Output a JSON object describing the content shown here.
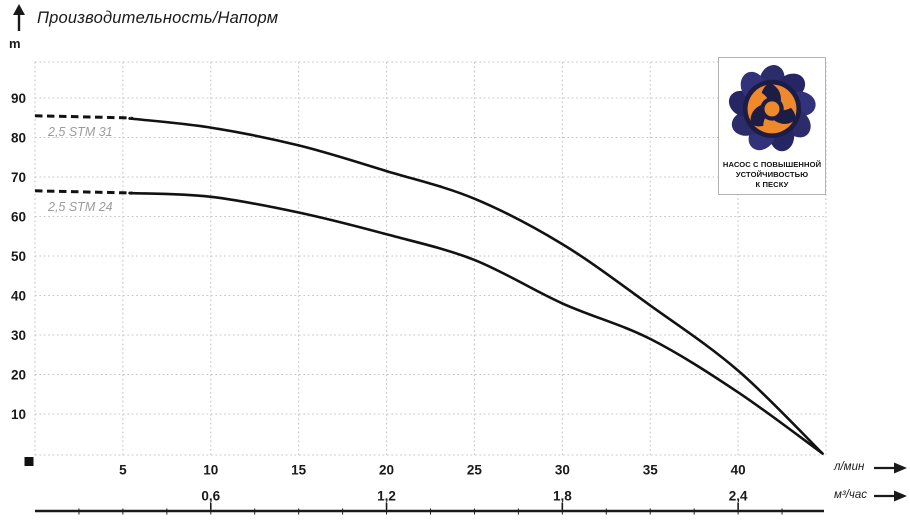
{
  "title_block": {
    "title": "Производительность/Напорм"
  },
  "logo": {
    "line1": "НАСОС С ПОВЫШЕННОЙ",
    "line2": "УСТОЙЧИВОСТЬЮ",
    "line3": "К ПЕСКУ"
  },
  "colors": {
    "curve": "#121212",
    "grid": "#c4c4c4",
    "label_gray": "#9b9b9b",
    "text": "#1a1a1a",
    "logo_navy": "#2c2c6b",
    "logo_dark": "#1c1c44",
    "logo_orange": "#ef8a2c"
  },
  "chart_data": {
    "type": "line",
    "title": "Производительность/Напорм",
    "grid": true,
    "legend_position": "inline-left",
    "y_axis": {
      "unit": "m",
      "ticks": [
        10,
        20,
        30,
        40,
        50,
        60,
        70,
        80,
        90
      ],
      "range": [
        0,
        99
      ]
    },
    "x_axis_primary": {
      "unit": "л/мин",
      "ticks": [
        5,
        10,
        15,
        20,
        25,
        30,
        35,
        40
      ],
      "range": [
        0,
        45
      ]
    },
    "x_axis_secondary": {
      "unit": "м³/час",
      "ticks": [
        {
          "label": "0,6",
          "at_lmin": 10
        },
        {
          "label": "1,2",
          "at_lmin": 20
        },
        {
          "label": "1,8",
          "at_lmin": 30
        },
        {
          "label": "2,4",
          "at_lmin": 40
        }
      ]
    },
    "series": [
      {
        "name": "2,5 STM 31",
        "dashed_until_lmin": 5.4,
        "points_lmin_m": [
          [
            0,
            85.5
          ],
          [
            5,
            85
          ],
          [
            10,
            82.5
          ],
          [
            15,
            78
          ],
          [
            20,
            71.5
          ],
          [
            25,
            64.5
          ],
          [
            30,
            53
          ],
          [
            35,
            37.5
          ],
          [
            40,
            21
          ],
          [
            44.8,
            0
          ]
        ]
      },
      {
        "name": "2,5 STM 24",
        "dashed_until_lmin": 5.4,
        "points_lmin_m": [
          [
            0,
            66.5
          ],
          [
            5,
            66
          ],
          [
            10,
            65
          ],
          [
            15,
            61
          ],
          [
            20,
            55.5
          ],
          [
            25,
            49
          ],
          [
            30,
            38
          ],
          [
            35,
            29
          ],
          [
            40,
            15.5
          ],
          [
            44.8,
            0
          ]
        ]
      }
    ]
  }
}
